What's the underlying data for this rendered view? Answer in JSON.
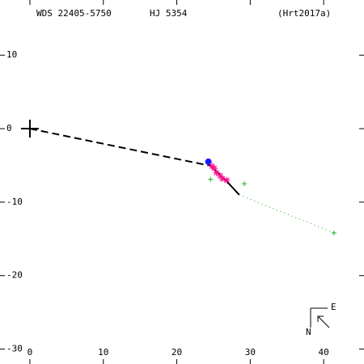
{
  "chart_data": {
    "type": "scatter",
    "title_left": "WDS 22405-5750",
    "title_center": "HJ 5354",
    "title_right": "(Hrt2017a)",
    "xlim": [
      -4.07,
      45.49
    ],
    "ylim": [
      -32.03,
      17.51
    ],
    "xticks": [
      0,
      10,
      20,
      30,
      40
    ],
    "yticks": [
      10,
      0,
      -10,
      -20,
      -30
    ],
    "lines": [
      {
        "style": "dash",
        "color": "#000000",
        "x": [
          0,
          24.3
        ],
        "y": [
          0,
          -5.0
        ]
      },
      {
        "style": "solid",
        "color": "#000000",
        "x": [
          24.1,
          25.0,
          26.0,
          27.2,
          28.5
        ],
        "y": [
          -4.7,
          -5.4,
          -6.4,
          -7.6,
          -9.0
        ]
      },
      {
        "style": "dot",
        "color": "#22aa22",
        "x": [
          28.5,
          41.4
        ],
        "y": [
          -9.0,
          -14.2
        ]
      }
    ],
    "series": [
      {
        "marker": "cross",
        "color": "#000000",
        "x": [
          0
        ],
        "y": [
          0
        ]
      },
      {
        "marker": "dot",
        "color": "#1a1aff",
        "x": [
          24.3
        ],
        "y": [
          -4.5
        ]
      },
      {
        "marker": "star",
        "color": "#ff1493",
        "x": [
          24.8,
          25.1,
          25.4,
          25.9,
          26.2,
          26.8
        ],
        "y": [
          -5.1,
          -5.4,
          -6.0,
          -6.4,
          -6.8,
          -7.0
        ]
      },
      {
        "marker": "plus",
        "color": "#22aa22",
        "x": [
          24.6,
          29.2,
          41.4
        ],
        "y": [
          -6.9,
          -7.5,
          -14.2
        ]
      }
    ],
    "compass": {
      "north": "N",
      "east": "E"
    }
  }
}
